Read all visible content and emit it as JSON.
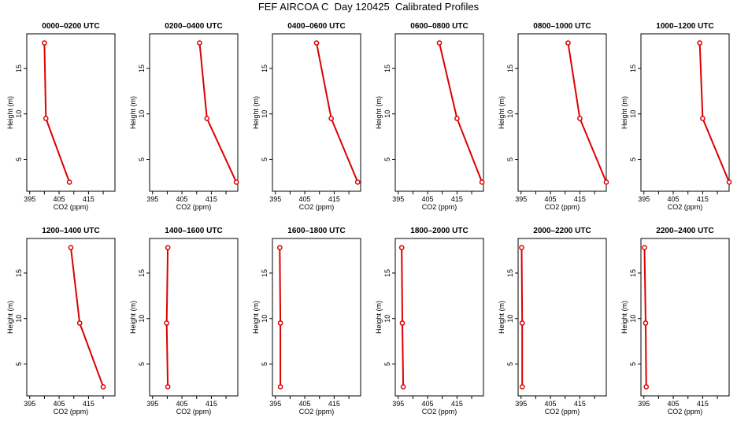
{
  "title": "FEF AIRCOA C  Day 120425  Calibrated Profiles",
  "colors": {
    "line": "#dd0000",
    "axes": "#000000"
  },
  "chart_data": [
    {
      "type": "line",
      "title": "0000–0200 UTC",
      "xlabel": "CO2 (ppm)",
      "ylabel": "Height (m)",
      "xticks": [
        395,
        405,
        415
      ],
      "yticks": [
        5,
        10,
        15
      ],
      "xlim": [
        394,
        424
      ],
      "ylim": [
        1.5,
        18.8
      ],
      "points": [
        {
          "x": 400,
          "y": 17.8
        },
        {
          "x": 400.5,
          "y": 9.5
        },
        {
          "x": 408.5,
          "y": 2.5
        }
      ]
    },
    {
      "type": "line",
      "title": "0200–0400 UTC",
      "xlabel": "CO2 (ppm)",
      "ylabel": "Height (m)",
      "xticks": [
        395,
        405,
        415
      ],
      "yticks": [
        5,
        10,
        15
      ],
      "xlim": [
        394,
        424
      ],
      "ylim": [
        1.5,
        18.8
      ],
      "points": [
        {
          "x": 411,
          "y": 17.8
        },
        {
          "x": 413.5,
          "y": 9.5
        },
        {
          "x": 423.5,
          "y": 2.5
        }
      ]
    },
    {
      "type": "line",
      "title": "0400–0600 UTC",
      "xlabel": "CO2 (ppm)",
      "ylabel": "Height (m)",
      "xticks": [
        395,
        405,
        415
      ],
      "yticks": [
        5,
        10,
        15
      ],
      "xlim": [
        394,
        424
      ],
      "ylim": [
        1.5,
        18.8
      ],
      "points": [
        {
          "x": 409,
          "y": 17.8
        },
        {
          "x": 414,
          "y": 9.5
        },
        {
          "x": 423,
          "y": 2.5
        }
      ]
    },
    {
      "type": "line",
      "title": "0600–0800 UTC",
      "xlabel": "CO2 (ppm)",
      "ylabel": "Height (m)",
      "xticks": [
        395,
        405,
        415
      ],
      "yticks": [
        5,
        10,
        15
      ],
      "xlim": [
        394,
        424
      ],
      "ylim": [
        1.5,
        18.8
      ],
      "points": [
        {
          "x": 409,
          "y": 17.8
        },
        {
          "x": 415,
          "y": 9.5
        },
        {
          "x": 423.5,
          "y": 2.5
        }
      ]
    },
    {
      "type": "line",
      "title": "0800–1000 UTC",
      "xlabel": "CO2 (ppm)",
      "ylabel": "Height (m)",
      "xticks": [
        395,
        405,
        415
      ],
      "yticks": [
        5,
        10,
        15
      ],
      "xlim": [
        394,
        424
      ],
      "ylim": [
        1.5,
        18.8
      ],
      "points": [
        {
          "x": 411,
          "y": 17.8
        },
        {
          "x": 415,
          "y": 9.5
        },
        {
          "x": 424,
          "y": 2.5
        }
      ]
    },
    {
      "type": "line",
      "title": "1000–1200 UTC",
      "xlabel": "CO2 (ppm)",
      "ylabel": "Height (m)",
      "xticks": [
        395,
        405,
        415
      ],
      "yticks": [
        5,
        10,
        15
      ],
      "xlim": [
        394,
        424
      ],
      "ylim": [
        1.5,
        18.8
      ],
      "points": [
        {
          "x": 414,
          "y": 17.8
        },
        {
          "x": 415,
          "y": 9.5
        },
        {
          "x": 424,
          "y": 2.5
        }
      ]
    },
    {
      "type": "line",
      "title": "1200–1400 UTC",
      "xlabel": "CO2 (ppm)",
      "ylabel": "Height (m)",
      "xticks": [
        395,
        405,
        415
      ],
      "yticks": [
        5,
        10,
        15
      ],
      "xlim": [
        394,
        424
      ],
      "ylim": [
        1.5,
        18.8
      ],
      "points": [
        {
          "x": 409,
          "y": 17.8
        },
        {
          "x": 412,
          "y": 9.5
        },
        {
          "x": 420,
          "y": 2.5
        }
      ]
    },
    {
      "type": "line",
      "title": "1400–1600 UTC",
      "xlabel": "CO2 (ppm)",
      "ylabel": "Height (m)",
      "xticks": [
        395,
        405,
        415
      ],
      "yticks": [
        5,
        10,
        15
      ],
      "xlim": [
        394,
        424
      ],
      "ylim": [
        1.5,
        18.8
      ],
      "points": [
        {
          "x": 400.2,
          "y": 17.8
        },
        {
          "x": 399.8,
          "y": 9.5
        },
        {
          "x": 400.2,
          "y": 2.5
        }
      ]
    },
    {
      "type": "line",
      "title": "1600–1800 UTC",
      "xlabel": "CO2 (ppm)",
      "ylabel": "Height (m)",
      "xticks": [
        395,
        405,
        415
      ],
      "yticks": [
        5,
        10,
        15
      ],
      "xlim": [
        394,
        424
      ],
      "ylim": [
        1.5,
        18.8
      ],
      "points": [
        {
          "x": 396.5,
          "y": 17.8
        },
        {
          "x": 396.7,
          "y": 9.5
        },
        {
          "x": 396.7,
          "y": 2.5
        }
      ]
    },
    {
      "type": "line",
      "title": "1800–2000 UTC",
      "xlabel": "CO2 (ppm)",
      "ylabel": "Height (m)",
      "xticks": [
        395,
        405,
        415
      ],
      "yticks": [
        5,
        10,
        15
      ],
      "xlim": [
        394,
        424
      ],
      "ylim": [
        1.5,
        18.8
      ],
      "points": [
        {
          "x": 396.2,
          "y": 17.8
        },
        {
          "x": 396.4,
          "y": 9.5
        },
        {
          "x": 396.7,
          "y": 2.5
        }
      ]
    },
    {
      "type": "line",
      "title": "2000–2200 UTC",
      "xlabel": "CO2 (ppm)",
      "ylabel": "Height (m)",
      "xticks": [
        395,
        405,
        415
      ],
      "yticks": [
        5,
        10,
        15
      ],
      "xlim": [
        394,
        424
      ],
      "ylim": [
        1.5,
        18.8
      ],
      "points": [
        {
          "x": 395.2,
          "y": 17.8
        },
        {
          "x": 395.4,
          "y": 9.5
        },
        {
          "x": 395.4,
          "y": 2.5
        }
      ]
    },
    {
      "type": "line",
      "title": "2200–2400 UTC",
      "xlabel": "CO2 (ppm)",
      "ylabel": "Height (m)",
      "xticks": [
        395,
        405,
        415
      ],
      "yticks": [
        5,
        10,
        15
      ],
      "xlim": [
        394,
        424
      ],
      "ylim": [
        1.5,
        18.8
      ],
      "points": [
        {
          "x": 395.2,
          "y": 17.8
        },
        {
          "x": 395.6,
          "y": 9.5
        },
        {
          "x": 395.8,
          "y": 2.5
        }
      ]
    }
  ]
}
